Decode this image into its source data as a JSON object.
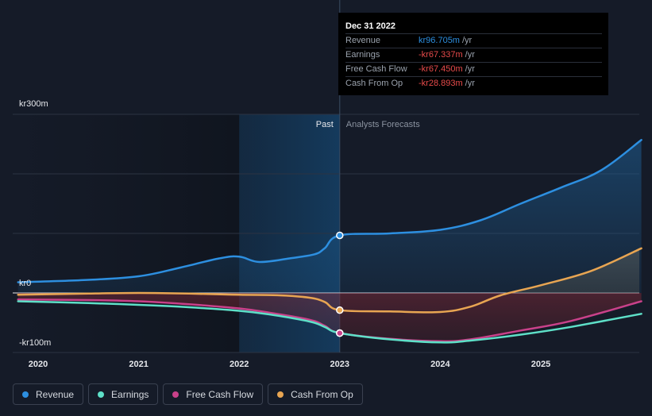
{
  "chart_data": {
    "type": "line",
    "title": "",
    "y_axis": {
      "ylim": [
        -100,
        300
      ],
      "tick_labels": [
        "kr300m",
        "kr0",
        "-kr100m"
      ],
      "tick_values": [
        300,
        0,
        -100
      ],
      "unit": "kr m"
    },
    "x_axis": {
      "tick_labels": [
        "2020",
        "2021",
        "2022",
        "2023",
        "2024",
        "2025"
      ],
      "tick_values": [
        2020,
        2021,
        2022,
        2023,
        2024,
        2025
      ],
      "xlim": [
        2019.8,
        2026.0
      ]
    },
    "divider_x": 2023.0,
    "region_labels": {
      "past": "Past",
      "forecast": "Analysts Forecasts"
    },
    "series": [
      {
        "name": "Revenue",
        "color": "#2d8fe0",
        "marker_y": 96.7,
        "points": [
          [
            2019.8,
            18
          ],
          [
            2020.5,
            22
          ],
          [
            2021.0,
            28
          ],
          [
            2021.4,
            42
          ],
          [
            2021.8,
            58
          ],
          [
            2022.0,
            61
          ],
          [
            2022.2,
            52
          ],
          [
            2022.5,
            58
          ],
          [
            2022.75,
            65
          ],
          [
            2022.85,
            75
          ],
          [
            2023.0,
            96.7
          ],
          [
            2023.5,
            100
          ],
          [
            2024.0,
            106
          ],
          [
            2024.4,
            122
          ],
          [
            2024.8,
            150
          ],
          [
            2025.2,
            177
          ],
          [
            2025.6,
            206
          ],
          [
            2026.0,
            257
          ]
        ]
      },
      {
        "name": "Earnings",
        "color": "#5ee0c8",
        "marker_y": -67.3,
        "points": [
          [
            2019.8,
            -14
          ],
          [
            2020.5,
            -17
          ],
          [
            2021.0,
            -20
          ],
          [
            2021.5,
            -24
          ],
          [
            2022.0,
            -30
          ],
          [
            2022.3,
            -36
          ],
          [
            2022.7,
            -48
          ],
          [
            2022.85,
            -57
          ],
          [
            2023.0,
            -67.3
          ],
          [
            2023.5,
            -78
          ],
          [
            2024.0,
            -83
          ],
          [
            2024.3,
            -80
          ],
          [
            2024.8,
            -70
          ],
          [
            2025.3,
            -57
          ],
          [
            2026.0,
            -35
          ]
        ]
      },
      {
        "name": "Free Cash Flow",
        "color": "#c9418a",
        "marker_y": -67.5,
        "points": [
          [
            2019.8,
            -11
          ],
          [
            2020.5,
            -12
          ],
          [
            2021.0,
            -14
          ],
          [
            2021.5,
            -19
          ],
          [
            2022.0,
            -26
          ],
          [
            2022.3,
            -33
          ],
          [
            2022.7,
            -45
          ],
          [
            2022.85,
            -55
          ],
          [
            2023.0,
            -67.5
          ],
          [
            2023.5,
            -77
          ],
          [
            2024.0,
            -81
          ],
          [
            2024.3,
            -78
          ],
          [
            2024.8,
            -63
          ],
          [
            2025.3,
            -47
          ],
          [
            2026.0,
            -14
          ]
        ]
      },
      {
        "name": "Cash From Op",
        "color": "#e8a552",
        "marker_y": -28.9,
        "points": [
          [
            2019.8,
            -3
          ],
          [
            2020.5,
            -1
          ],
          [
            2021.0,
            0
          ],
          [
            2021.5,
            -1
          ],
          [
            2022.0,
            -3
          ],
          [
            2022.4,
            -4
          ],
          [
            2022.7,
            -8
          ],
          [
            2022.85,
            -15
          ],
          [
            2023.0,
            -28.9
          ],
          [
            2023.5,
            -31
          ],
          [
            2024.0,
            -32
          ],
          [
            2024.3,
            -23
          ],
          [
            2024.6,
            -4
          ],
          [
            2025.0,
            13
          ],
          [
            2025.5,
            37
          ],
          [
            2026.0,
            75
          ]
        ]
      }
    ]
  },
  "tooltip": {
    "date": "Dec 31 2022",
    "rows": [
      {
        "label": "Revenue",
        "value": "kr96.705m",
        "unit": "/yr",
        "color": "#2d8fe0"
      },
      {
        "label": "Earnings",
        "value": "-kr67.337m",
        "unit": "/yr",
        "color": "#e84b4b"
      },
      {
        "label": "Free Cash Flow",
        "value": "-kr67.450m",
        "unit": "/yr",
        "color": "#e84b4b"
      },
      {
        "label": "Cash From Op",
        "value": "-kr28.893m",
        "unit": "/yr",
        "color": "#e84b4b"
      }
    ]
  },
  "legend": [
    {
      "label": "Revenue",
      "color": "#2d8fe0"
    },
    {
      "label": "Earnings",
      "color": "#5ee0c8"
    },
    {
      "label": "Free Cash Flow",
      "color": "#c9418a"
    },
    {
      "label": "Cash From Op",
      "color": "#e8a552"
    }
  ]
}
